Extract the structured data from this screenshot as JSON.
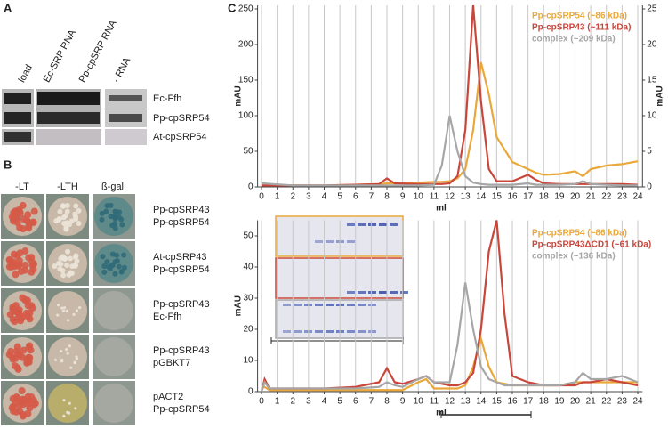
{
  "panels": {
    "A": {
      "label": "A",
      "lanes": [
        "load",
        "Ec-SRP RNA",
        "Pp-cpSRP RNA",
        "- RNA"
      ],
      "rows": [
        "Ec-Ffh",
        "Pp-cpSRP54",
        "At-cpSRP54"
      ]
    },
    "B": {
      "label": "B",
      "columns": [
        "-LT",
        "-LTH",
        "ß-gal."
      ],
      "rows": [
        [
          "Pp-cpSRP43",
          "Pp-cpSRP54"
        ],
        [
          "At-cpSRP43",
          "Pp-cpSRP54"
        ],
        [
          "Pp-cpSRP43",
          "Ec-Ffh"
        ],
        [
          "Pp-cpSRP43",
          "pGBKT7"
        ],
        [
          "pACT2",
          "Pp-cpSRP54"
        ]
      ]
    },
    "C": {
      "label": "C"
    }
  },
  "chart_data": [
    {
      "type": "line",
      "xlabel": "ml",
      "ylabel": "mAU",
      "y2label": "mAU",
      "grid": "x",
      "x": [
        0,
        2,
        4,
        6,
        7.5,
        8,
        8.5,
        10,
        11,
        11.5,
        12,
        12.5,
        13,
        13.5,
        14,
        14.5,
        15,
        16,
        17,
        17.5,
        18,
        19,
        20,
        20.5,
        21,
        22,
        23,
        24
      ],
      "series": [
        {
          "name": "Pp-cpSRP54 (~86 kDa)",
          "color": "#eaa83a",
          "values": [
            2,
            2,
            2,
            3,
            4,
            5,
            5,
            6,
            7,
            7,
            8,
            12,
            25,
            80,
            175,
            130,
            70,
            35,
            25,
            20,
            17,
            18,
            22,
            15,
            25,
            30,
            32,
            36
          ]
        },
        {
          "name": "Pp-cpSRP43 (~111 kDa)",
          "color": "#c9463b",
          "values": [
            2,
            2,
            2,
            3,
            4,
            12,
            5,
            4,
            4,
            4,
            5,
            15,
            80,
            255,
            120,
            25,
            8,
            8,
            17,
            10,
            5,
            4,
            4,
            4,
            4,
            4,
            4,
            3
          ]
        },
        {
          "name": "complex (~209 kDa)",
          "color": "#a6a6a6",
          "values": [
            5,
            2,
            2,
            2,
            2,
            2,
            2,
            2,
            3,
            30,
            100,
            50,
            15,
            6,
            4,
            3,
            3,
            3,
            5,
            3,
            3,
            3,
            4,
            8,
            4,
            3,
            2,
            2
          ]
        }
      ],
      "xlim": [
        -0.25,
        24.3
      ],
      "xticks": [
        0,
        1,
        2,
        3,
        4,
        5,
        6,
        7,
        8,
        9,
        10,
        11,
        12,
        13,
        14,
        15,
        16,
        17,
        18,
        19,
        20,
        21,
        22,
        23,
        24
      ],
      "ylim": [
        0,
        255
      ],
      "yticks": [
        0,
        50,
        100,
        150,
        200,
        250
      ],
      "y2lim": [
        0,
        25.5
      ],
      "y2ticks": [
        0,
        5,
        10,
        15,
        20,
        25
      ]
    },
    {
      "type": "line",
      "xlabel": "ml",
      "ylabel": "mAU",
      "grid": "x",
      "x": [
        0,
        0.2,
        0.5,
        2,
        4,
        6,
        7.5,
        8,
        8.5,
        9,
        10,
        10.5,
        11,
        12,
        12.5,
        13,
        13.5,
        14,
        14.5,
        15,
        15.5,
        16,
        17,
        18,
        19,
        20,
        20.5,
        21,
        22,
        23,
        24
      ],
      "series": [
        {
          "name": "Pp-cpSRP54 (~86 kDa)",
          "color": "#eaa83a",
          "values": [
            1,
            1.5,
            0.5,
            0.5,
            0.5,
            0.5,
            0.5,
            0.5,
            0.5,
            0.5,
            3,
            4,
            1,
            1,
            1,
            2,
            8,
            17,
            8,
            3,
            2.5,
            2,
            2,
            2,
            2,
            3,
            3,
            3,
            3,
            3,
            3
          ]
        },
        {
          "name": "Pp-cpSRP43ΔCD1 (~61 kDa)",
          "color": "#c9463b",
          "values": [
            0,
            4,
            1,
            1,
            1,
            1.5,
            3,
            7.5,
            3,
            2.5,
            4,
            5,
            3,
            2,
            2,
            3,
            6,
            20,
            45,
            55,
            25,
            5,
            3,
            2,
            2,
            2,
            3,
            3,
            4,
            3,
            2
          ]
        },
        {
          "name": "complex (~136 kDa)",
          "color": "#a6a6a6",
          "values": [
            0,
            3,
            1,
            1,
            1,
            1,
            1.5,
            3,
            2,
            1.5,
            4,
            5,
            3,
            3,
            15,
            35,
            20,
            8,
            4,
            3,
            2,
            2,
            2,
            2,
            2,
            3,
            6,
            4,
            4,
            5,
            3
          ]
        }
      ],
      "xlim": [
        -0.25,
        24.3
      ],
      "xticks": [
        0,
        1,
        2,
        3,
        4,
        5,
        6,
        7,
        8,
        9,
        10,
        11,
        12,
        13,
        14,
        15,
        16,
        17,
        18,
        19,
        20,
        21,
        22,
        23,
        24
      ],
      "ylim": [
        0,
        55
      ],
      "yticks": [
        0,
        10,
        20,
        30,
        40,
        50
      ]
    }
  ]
}
